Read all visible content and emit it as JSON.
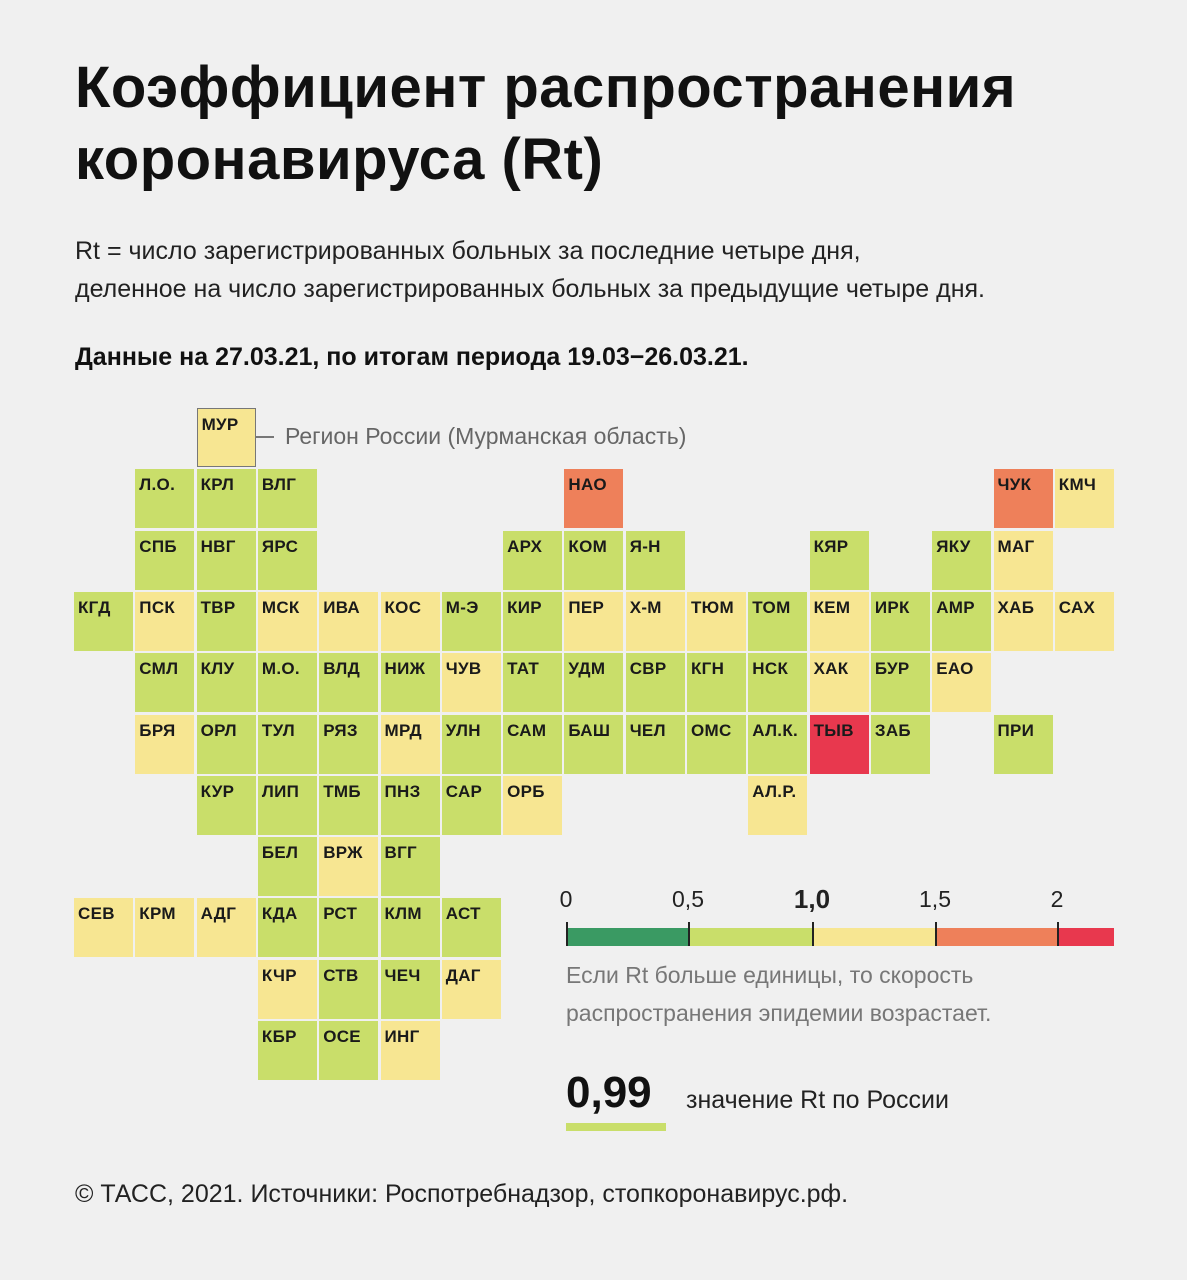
{
  "title": "Коэффициент распространения коронавируса (Rt)",
  "subtitle_line1": "Rt = число зарегистрированных больных за последние четыре дня,",
  "subtitle_line2": "деленное на число зарегистрированных больных за предыдущие четыре дня.",
  "date_line": "Данные на 27.03.21, по итогам периода 19.03−26.03.21.",
  "legend_callout": "Регион России (Мурманская область)",
  "colors": {
    "dark_green": "#3a9a63",
    "green": "#c9de6a",
    "yellow": "#f7e692",
    "orange": "#ee805a",
    "red": "#e8384e"
  },
  "regions": [
    {
      "code": "МУР",
      "band": "yellow",
      "legend": true
    },
    {
      "code": "Л.О.",
      "band": "green"
    },
    {
      "code": "КРЛ",
      "band": "green"
    },
    {
      "code": "ВЛГ",
      "band": "green"
    },
    {
      "code": "НАО",
      "band": "orange"
    },
    {
      "code": "ЧУК",
      "band": "orange"
    },
    {
      "code": "КМЧ",
      "band": "yellow"
    },
    {
      "code": "СПБ",
      "band": "green"
    },
    {
      "code": "НВГ",
      "band": "green"
    },
    {
      "code": "ЯРС",
      "band": "green"
    },
    {
      "code": "АРХ",
      "band": "green"
    },
    {
      "code": "КОМ",
      "band": "green"
    },
    {
      "code": "Я-Н",
      "band": "green"
    },
    {
      "code": "КЯР",
      "band": "green"
    },
    {
      "code": "ЯКУ",
      "band": "green"
    },
    {
      "code": "МАГ",
      "band": "yellow"
    },
    {
      "code": "КГД",
      "band": "green"
    },
    {
      "code": "ПСК",
      "band": "yellow"
    },
    {
      "code": "ТВР",
      "band": "green"
    },
    {
      "code": "МСК",
      "band": "yellow"
    },
    {
      "code": "ИВА",
      "band": "yellow"
    },
    {
      "code": "КОС",
      "band": "yellow"
    },
    {
      "code": "М-Э",
      "band": "green"
    },
    {
      "code": "КИР",
      "band": "green"
    },
    {
      "code": "ПЕР",
      "band": "yellow"
    },
    {
      "code": "Х-М",
      "band": "yellow"
    },
    {
      "code": "ТЮМ",
      "band": "yellow"
    },
    {
      "code": "ТОМ",
      "band": "green"
    },
    {
      "code": "КЕМ",
      "band": "yellow"
    },
    {
      "code": "ИРК",
      "band": "green"
    },
    {
      "code": "АМР",
      "band": "green"
    },
    {
      "code": "ХАБ",
      "band": "yellow"
    },
    {
      "code": "САХ",
      "band": "yellow"
    },
    {
      "code": "СМЛ",
      "band": "green"
    },
    {
      "code": "КЛУ",
      "band": "green"
    },
    {
      "code": "М.О.",
      "band": "green"
    },
    {
      "code": "ВЛД",
      "band": "green"
    },
    {
      "code": "НИЖ",
      "band": "green"
    },
    {
      "code": "ЧУВ",
      "band": "yellow"
    },
    {
      "code": "ТАТ",
      "band": "green"
    },
    {
      "code": "УДМ",
      "band": "green"
    },
    {
      "code": "СВР",
      "band": "green"
    },
    {
      "code": "КГН",
      "band": "green"
    },
    {
      "code": "НСК",
      "band": "green"
    },
    {
      "code": "ХАК",
      "band": "yellow"
    },
    {
      "code": "БУР",
      "band": "green"
    },
    {
      "code": "ЕАО",
      "band": "yellow"
    },
    {
      "code": "БРЯ",
      "band": "yellow"
    },
    {
      "code": "ОРЛ",
      "band": "green"
    },
    {
      "code": "ТУЛ",
      "band": "green"
    },
    {
      "code": "РЯЗ",
      "band": "green"
    },
    {
      "code": "МРД",
      "band": "yellow"
    },
    {
      "code": "УЛН",
      "band": "green"
    },
    {
      "code": "САМ",
      "band": "green"
    },
    {
      "code": "БАШ",
      "band": "green"
    },
    {
      "code": "ЧЕЛ",
      "band": "green"
    },
    {
      "code": "ОМС",
      "band": "green"
    },
    {
      "code": "АЛ.К.",
      "band": "green"
    },
    {
      "code": "ТЫВ",
      "band": "red"
    },
    {
      "code": "ЗАБ",
      "band": "green"
    },
    {
      "code": "ПРИ",
      "band": "green"
    },
    {
      "code": "КУР",
      "band": "green"
    },
    {
      "code": "ЛИП",
      "band": "green"
    },
    {
      "code": "ТМБ",
      "band": "green"
    },
    {
      "code": "ПНЗ",
      "band": "green"
    },
    {
      "code": "САР",
      "band": "green"
    },
    {
      "code": "ОРБ",
      "band": "yellow"
    },
    {
      "code": "АЛ.Р.",
      "band": "yellow"
    },
    {
      "code": "БЕЛ",
      "band": "green"
    },
    {
      "code": "ВРЖ",
      "band": "yellow"
    },
    {
      "code": "ВГГ",
      "band": "green"
    },
    {
      "code": "СЕВ",
      "band": "yellow"
    },
    {
      "code": "КРМ",
      "band": "yellow"
    },
    {
      "code": "АДГ",
      "band": "yellow"
    },
    {
      "code": "КДА",
      "band": "green"
    },
    {
      "code": "РСТ",
      "band": "green"
    },
    {
      "code": "КЛМ",
      "band": "green"
    },
    {
      "code": "АСТ",
      "band": "green"
    },
    {
      "code": "КЧР",
      "band": "yellow"
    },
    {
      "code": "СТВ",
      "band": "green"
    },
    {
      "code": "ЧЕЧ",
      "band": "green"
    },
    {
      "code": "ДАГ",
      "band": "yellow"
    },
    {
      "code": "КБР",
      "band": "green"
    },
    {
      "code": "ОСЕ",
      "band": "green"
    },
    {
      "code": "ИНГ",
      "band": "yellow"
    }
  ],
  "scale": {
    "ticks": [
      "0",
      "0,5",
      "1,0",
      "1,5",
      "2"
    ],
    "bold_tick": "1,0"
  },
  "scale_note_line1": "Если Rt больше единицы, то скорость",
  "scale_note_line2": "распространения эпидемии возрастает.",
  "russia_value": "0,99",
  "russia_label": "значение Rt по России",
  "footer": "© ТАСС, 2021. Источники: Роспотребнадзор, стопкоронавирус.рф."
}
